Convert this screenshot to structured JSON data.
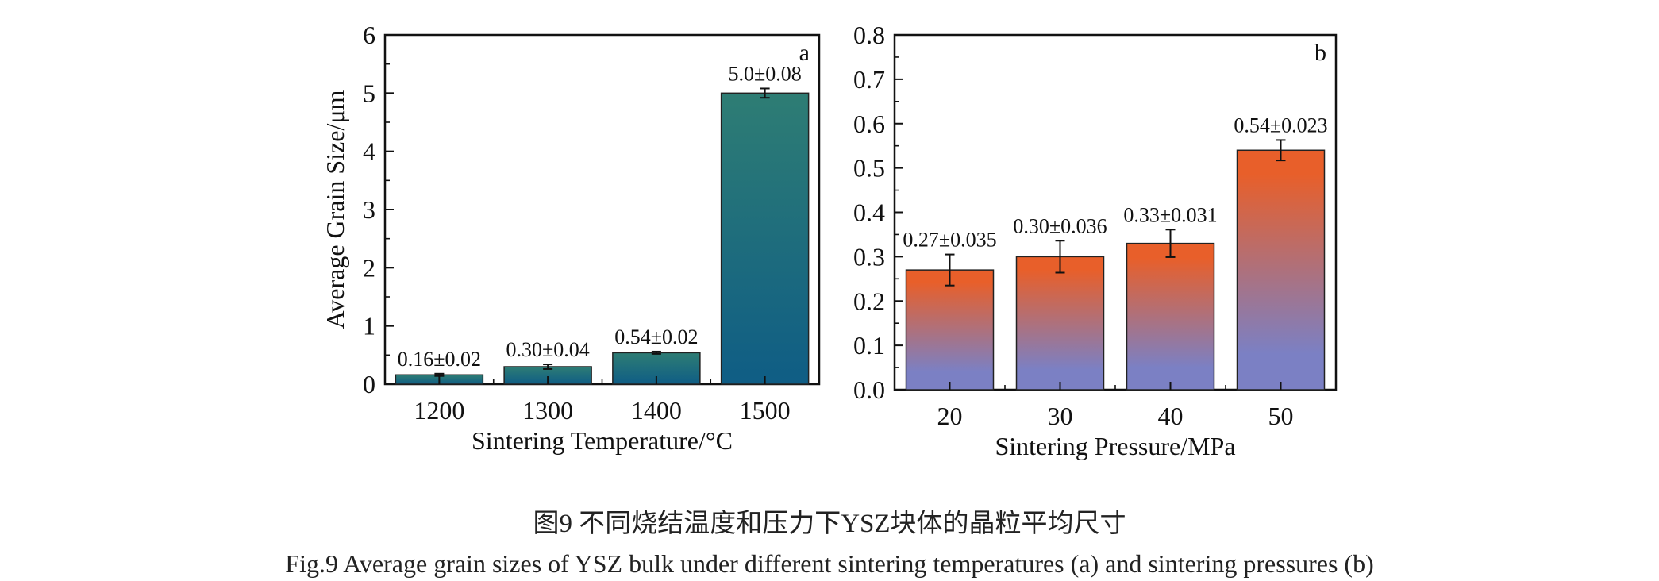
{
  "chart_data": [
    {
      "type": "bar",
      "panel_label": "a",
      "categories": [
        "1200",
        "1300",
        "1400",
        "1500"
      ],
      "values": [
        0.16,
        0.3,
        0.54,
        5.0
      ],
      "errors": [
        0.02,
        0.04,
        0.02,
        0.08
      ],
      "value_labels": [
        "0.16±0.02",
        "0.30±0.04",
        "0.54±0.02",
        "5.0±0.08"
      ],
      "xlabel": "Sintering Temperature/°C",
      "ylabel": "Average Grain Size/μm",
      "ylim": [
        0,
        6
      ],
      "yticks": [
        "0",
        "1",
        "2",
        "3",
        "4",
        "5",
        "6"
      ],
      "gradient": {
        "top": "#2e7d74",
        "bottom": "#0f5d85"
      }
    },
    {
      "type": "bar",
      "panel_label": "b",
      "categories": [
        "20",
        "30",
        "40",
        "50"
      ],
      "values": [
        0.27,
        0.3,
        0.33,
        0.54
      ],
      "errors": [
        0.035,
        0.036,
        0.031,
        0.023
      ],
      "value_labels": [
        "0.27±0.035",
        "0.30±0.036",
        "0.33±0.031",
        "0.54±0.023"
      ],
      "xlabel": "Sintering Pressure/MPa",
      "ylabel": "",
      "ylim": [
        0,
        0.8
      ],
      "yticks": [
        "0.0",
        "0.1",
        "0.2",
        "0.3",
        "0.4",
        "0.5",
        "0.6",
        "0.7",
        "0.8"
      ],
      "gradient": {
        "top": "#e85f2a",
        "bottom": "#7b80c4"
      }
    }
  ],
  "caption": {
    "zh": "图9  不同烧结温度和压力下YSZ块体的晶粒平均尺寸",
    "en": "Fig.9  Average grain sizes of YSZ bulk under different sintering temperatures (a) and sintering pressures (b)"
  }
}
